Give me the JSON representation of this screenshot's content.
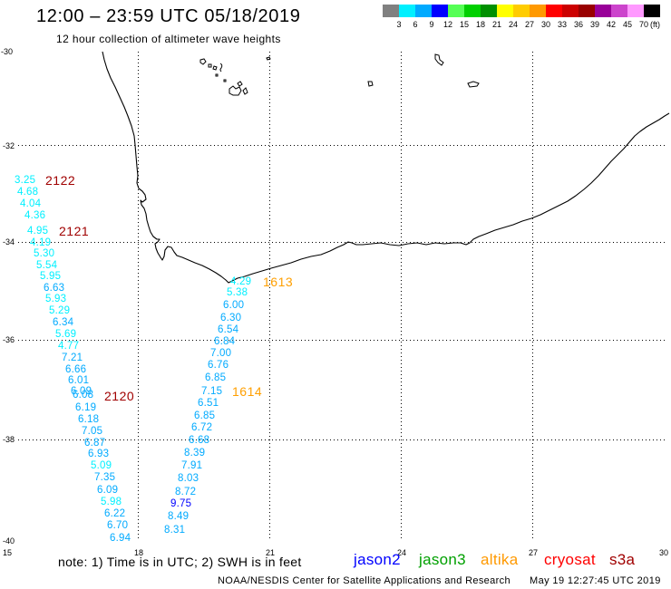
{
  "title": "12:00 – 23:59 UTC 05/18/2019",
  "subtitle": "12 hour collection of altimeter wave heights",
  "color_scale": {
    "colors": [
      "#808080",
      "#00f0ff",
      "#00aaff",
      "#0000ff",
      "#55ff55",
      "#00d000",
      "#009000",
      "#ffff00",
      "#ffcc00",
      "#ff9900",
      "#ff0000",
      "#cc0000",
      "#990000",
      "#990099",
      "#cc44cc",
      "#ff99ff",
      "#000000"
    ],
    "labels": [
      "3",
      "6",
      "9",
      "12",
      "15",
      "18",
      "21",
      "24",
      "27",
      "30",
      "33",
      "36",
      "39",
      "42",
      "45",
      "70"
    ],
    "unit": "(ft)"
  },
  "axes": {
    "latitude_labels": [
      "-30",
      "-32",
      "-34",
      "-36",
      "-38",
      "-40"
    ],
    "longitude_labels": [
      "15",
      "18",
      "21",
      "24",
      "27",
      "30"
    ]
  },
  "passes": [
    {
      "label": "2122",
      "color": "#a00000"
    },
    {
      "label": "2121",
      "color": "#a00000"
    },
    {
      "label": "2120",
      "color": "#a00000"
    },
    {
      "label": "1613",
      "color": "#ff9f00"
    },
    {
      "label": "1614",
      "color": "#ff9f00"
    }
  ],
  "tracks": [
    {
      "wave_heights_ft": [
        "3.25",
        "4.68",
        "4.04",
        "4.36",
        "4.95",
        "4.19",
        "5.30",
        "5.54",
        "5.95",
        "6.63",
        "5.93",
        "5.29",
        "6.34",
        "5.69",
        "4.77",
        "7.21",
        "6.66",
        "6.01",
        "6.09",
        "6.08",
        "6.19",
        "6.18",
        "7.05",
        "6.87",
        "6.93",
        "5.09",
        "7.35",
        "6.09",
        "5.98",
        "6.22",
        "6.70",
        "6.94"
      ]
    },
    {
      "wave_heights_ft": [
        "4.29",
        "5.38",
        "6.00",
        "6.30",
        "6.54",
        "6.84",
        "7.00",
        "6.76",
        "6.85",
        "7.15",
        "6.51",
        "6.85",
        "6.72",
        "6.68",
        "8.39",
        "7.91",
        "8.03",
        "8.72",
        "9.75",
        "8.49",
        "8.31"
      ]
    }
  ],
  "note": "note: 1) Time is in UTC; 2) SWH is in feet",
  "satellites": [
    {
      "name": "jason2",
      "color": "#0000ff"
    },
    {
      "name": "jason3",
      "color": "#00a000"
    },
    {
      "name": "altika",
      "color": "#ff9900"
    },
    {
      "name": "cryosat",
      "color": "#ff0000"
    },
    {
      "name": "s3a",
      "color": "#a00000"
    }
  ],
  "credit": "NOAA/NESDIS Center for Satellite Applications and Research",
  "generated": "May 19 12:27:45 UTC 2019"
}
